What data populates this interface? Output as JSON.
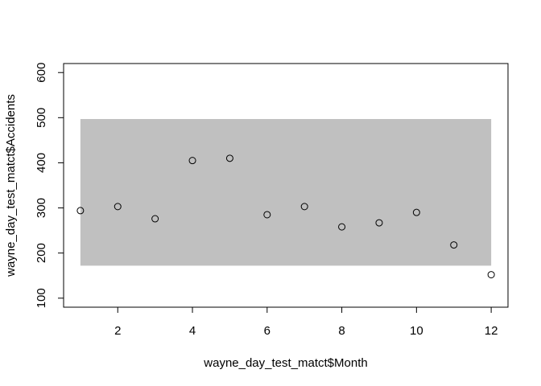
{
  "chart_data": {
    "type": "scatter",
    "title": "",
    "xlabel": "wayne_day_test_matct$Month",
    "ylabel": "wayne_day_test_matct$Accidents",
    "xlim": [
      0.55,
      12.45
    ],
    "ylim": [
      80,
      620
    ],
    "xticks": [
      2,
      4,
      6,
      8,
      10,
      12
    ],
    "yticks": [
      100,
      200,
      300,
      400,
      500,
      600
    ],
    "grid": false,
    "band": {
      "x0": 1,
      "x1": 12,
      "y0": 172,
      "y1": 497,
      "color": "#c0c0c0"
    },
    "series": [
      {
        "marker": "open-circle",
        "x": [
          1,
          2,
          3,
          4,
          5,
          6,
          7,
          8,
          9,
          10,
          11,
          12
        ],
        "y": [
          294,
          303,
          276,
          405,
          410,
          285,
          303,
          258,
          267,
          290,
          218,
          152
        ]
      }
    ]
  }
}
